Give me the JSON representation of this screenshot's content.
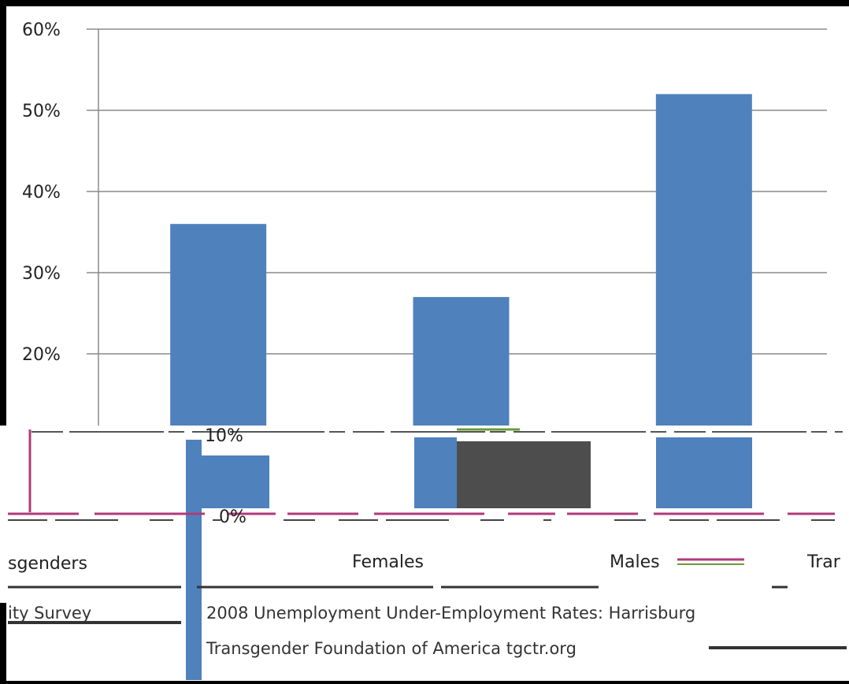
{
  "chart_data": {
    "type": "bar",
    "categories": [
      "Transgenders",
      "Females",
      "Males"
    ],
    "values": [
      36,
      27,
      52
    ],
    "ylim": [
      0,
      60
    ],
    "yticks": [
      "0%",
      "10%",
      "20%",
      "30%",
      "40%",
      "50%",
      "60%"
    ],
    "grid": true,
    "bar_color": "#4f81bd"
  },
  "visible_labels": {
    "categories": [
      "sgenders",
      "Females",
      "Males",
      "Trar"
    ],
    "source_line1": "ity Survey",
    "source_line2": "2008 Unemployment Under-Employment Rates: Harrisburg",
    "source_line3": "Transgender Foundation of America tgctr.org"
  }
}
